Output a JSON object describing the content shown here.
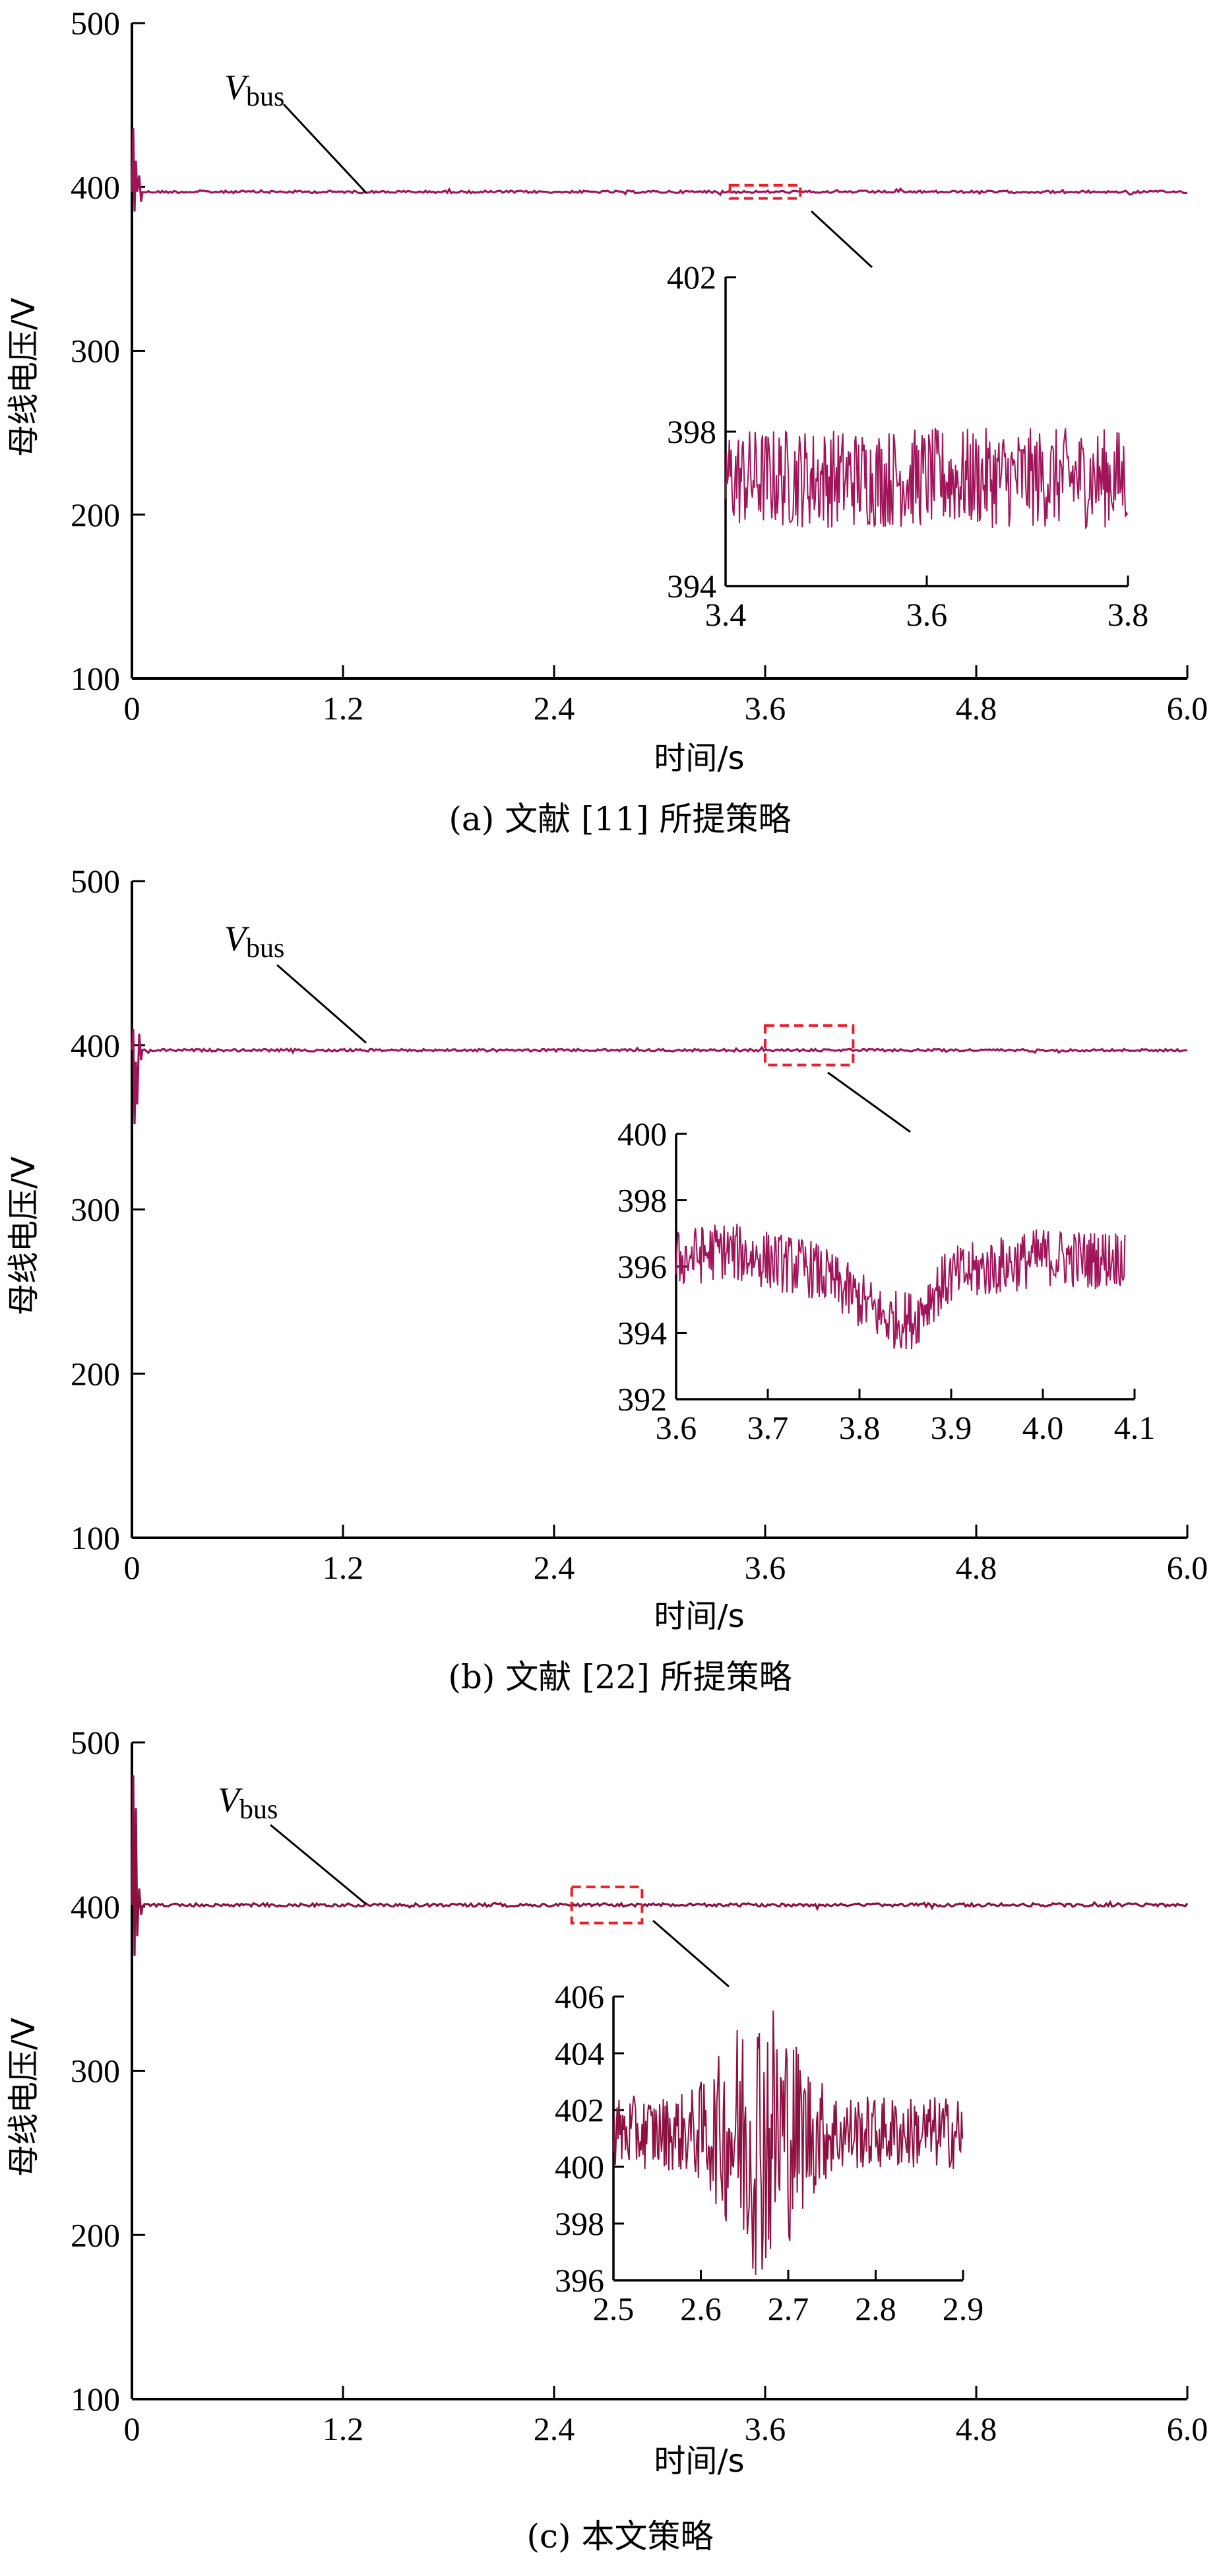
{
  "chart_data": [
    {
      "type": "line",
      "caption": "(a) 文献 [11] 所提策略",
      "xlabel": "时间/s",
      "ylabel": "母线电压/V",
      "series_label_main": "V",
      "series_label_sub": "bus",
      "xlim": [
        0,
        6.0
      ],
      "ylim": [
        100,
        500
      ],
      "xticks": [
        "0",
        "1.2",
        "2.4",
        "3.6",
        "4.8",
        "6.0"
      ],
      "yticks": [
        "100",
        "200",
        "300",
        "400",
        "500"
      ],
      "series": [
        {
          "values": {
            "steady_level": 397,
            "startup_peak": 436,
            "startup_min": 385,
            "ripple": 1.5
          }
        }
      ],
      "zoom_box": {
        "x": [
          3.4,
          3.8
        ],
        "y": [
          393,
          401
        ]
      },
      "inset": {
        "xlim": [
          3.4,
          3.8
        ],
        "ylim": [
          394,
          402
        ],
        "xticks": [
          "3.4",
          "3.6",
          "3.8"
        ],
        "yticks": [
          "394",
          "398",
          "402"
        ],
        "level": 396.8,
        "ripple": 1.3
      },
      "line_color": "#a0145a",
      "zoom_box_color": "#e8202a"
    },
    {
      "type": "line",
      "caption": "(b) 文献 [22] 所提策略",
      "xlabel": "时间/s",
      "ylabel": "母线电压/V",
      "series_label_main": "V",
      "series_label_sub": "bus",
      "xlim": [
        0,
        6.0
      ],
      "ylim": [
        100,
        500
      ],
      "xticks": [
        "0",
        "1.2",
        "2.4",
        "3.6",
        "4.8",
        "6.0"
      ],
      "yticks": [
        "100",
        "200",
        "300",
        "400",
        "500"
      ],
      "series": [
        {
          "values": {
            "steady_level": 397,
            "startup_peak": 410,
            "startup_min": 352,
            "ripple": 1.5
          }
        }
      ],
      "zoom_box": {
        "x": [
          3.6,
          4.1
        ],
        "y": [
          388,
          412
        ]
      },
      "inset": {
        "xlim": [
          3.6,
          4.1
        ],
        "ylim": [
          392,
          400
        ],
        "xticks": [
          "3.6",
          "3.7",
          "3.8",
          "3.9",
          "4.0",
          "4.1"
        ],
        "yticks": [
          "392",
          "394",
          "396",
          "398",
          "400"
        ],
        "profile": [
          [
            3.6,
            396.2
          ],
          [
            3.65,
            396.5
          ],
          [
            3.7,
            396.2
          ],
          [
            3.75,
            395.9
          ],
          [
            3.8,
            395.0
          ],
          [
            3.83,
            394.4
          ],
          [
            3.86,
            394.4
          ],
          [
            3.88,
            395.2
          ],
          [
            3.9,
            395.7
          ],
          [
            3.95,
            396.0
          ],
          [
            4.0,
            396.3
          ],
          [
            4.05,
            396.2
          ],
          [
            4.09,
            396.3
          ]
        ],
        "ripple": 0.9
      },
      "line_color": "#a0145a",
      "zoom_box_color": "#e8202a"
    },
    {
      "type": "line",
      "caption": "(c) 本文策略",
      "xlabel": "时间/s",
      "ylabel": "母线电压/V",
      "series_label_main": "V",
      "series_label_sub": "bus",
      "xlim": [
        0,
        6.0
      ],
      "ylim": [
        100,
        500
      ],
      "xticks": [
        "0",
        "1.2",
        "2.4",
        "3.6",
        "4.8",
        "6.0"
      ],
      "yticks": [
        "100",
        "200",
        "300",
        "400",
        "500"
      ],
      "series": [
        {
          "values": {
            "steady_level": 401,
            "startup_peak": 480,
            "startup_min": 370,
            "ripple": 2
          }
        }
      ],
      "zoom_box": {
        "x": [
          2.5,
          2.9
        ],
        "y": [
          390,
          412
        ]
      },
      "inset": {
        "xlim": [
          2.5,
          2.9
        ],
        "ylim": [
          396,
          406
        ],
        "xticks": [
          "2.5",
          "2.6",
          "2.7",
          "2.8",
          "2.9"
        ],
        "yticks": [
          "396",
          "398",
          "400",
          "402",
          "404",
          "406"
        ],
        "level": 401.2,
        "ripple": 1.3,
        "burst_center": 2.67,
        "burst_amp": 3.8
      },
      "line_color": "#8c1040",
      "zoom_box_color": "#e8202a"
    }
  ]
}
